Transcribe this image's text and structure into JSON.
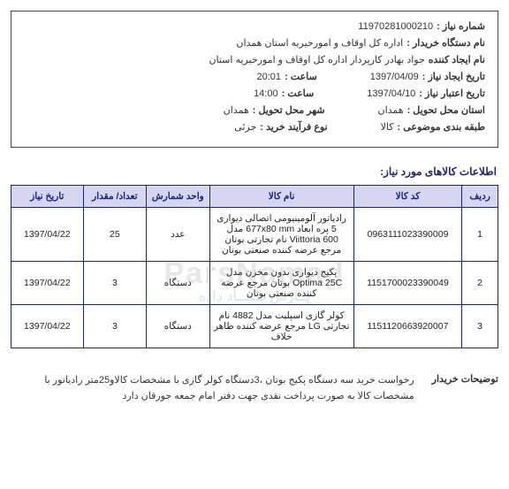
{
  "header": {
    "fields": {
      "need_no_label": "شماره نیاز :",
      "need_no": "11970281000210",
      "buyer_org_label": "نام دستگاه خریدار :",
      "buyer_org": "اداره کل اوقاف و امورخیریه استان همدان",
      "creator_label": "نام ایجاد کننده",
      "creator": "جواد بهادر کارپرداز اداره کل اوقاف و امورخیریه استان",
      "create_date_label": "تاریخ ایجاد نیاز :",
      "create_date": "1397/04/09",
      "create_time_label": "ساعت :",
      "create_time": "20:01",
      "valid_date_label": "تاریخ اعتبار نیاز :",
      "valid_date": "1397/04/10",
      "valid_time_label": "ساعت :",
      "valid_time": "14:00",
      "deliver_prov_label": "استان محل تحویل :",
      "deliver_prov": "همدان",
      "deliver_city_label": "شهر محل تحویل :",
      "deliver_city": "همدان",
      "subject_class_label": "طبقه بندی موضوعی :",
      "subject_class": "کالا",
      "process_type_label": "نوع فرآیند خرید :",
      "process_type": "جزئی"
    }
  },
  "section_title": "اطلاعات کالاهای مورد نیاز:",
  "table": {
    "headers": {
      "row": "ردیف",
      "code": "کد کالا",
      "name": "نام کالا",
      "unit": "واحد شمارش",
      "qty": "تعداد/ مقدار",
      "date": "تاریخ نیاز"
    },
    "rows": [
      {
        "row": "1",
        "code": "0963111023390009",
        "name": "رادیاتور آلومینیومی اتصالی دیواری 5 پره ابعاد 677x80 mm مدل Viittoria 600 نام تجارتی بوتان مرجع عرضه کننده صنعتی بوتان",
        "unit": "عدد",
        "qty": "25",
        "date": "1397/04/22"
      },
      {
        "row": "2",
        "code": "1151700023390049",
        "name": "پکیج دیواری بدون مخزن مدل Optima 25C بوتان مرجع عرضه کننده صنعتی بوتان",
        "unit": "دستگاه",
        "qty": "3",
        "date": "1397/04/22"
      },
      {
        "row": "3",
        "code": "1151120663920007",
        "name": "کولر گازی اسپلیت مدل 4882 نام تجارتی LG مرجع عرضه کننده ظاهر خلاف",
        "unit": "دستگاه",
        "qty": "3",
        "date": "1397/04/22"
      }
    ]
  },
  "buyer_desc": {
    "label": "توضیحات خریدار",
    "value": "رخواست خرید سه دستگاه پکیج بوتان ،3دستگاه کولر گازی با مشخصات کالاو25متر رادیاتور با مشخصات کالا  به صورت پرداخت نقدی جهت دفتر امام جمعه جورقان دارد"
  },
  "watermark": {
    "main": "ParsNamad",
    "sub": "پــارس نــمــاد داده"
  },
  "colors": {
    "border": "#1a237e",
    "header_bg": "#d4d6f2",
    "text": "#333333"
  }
}
